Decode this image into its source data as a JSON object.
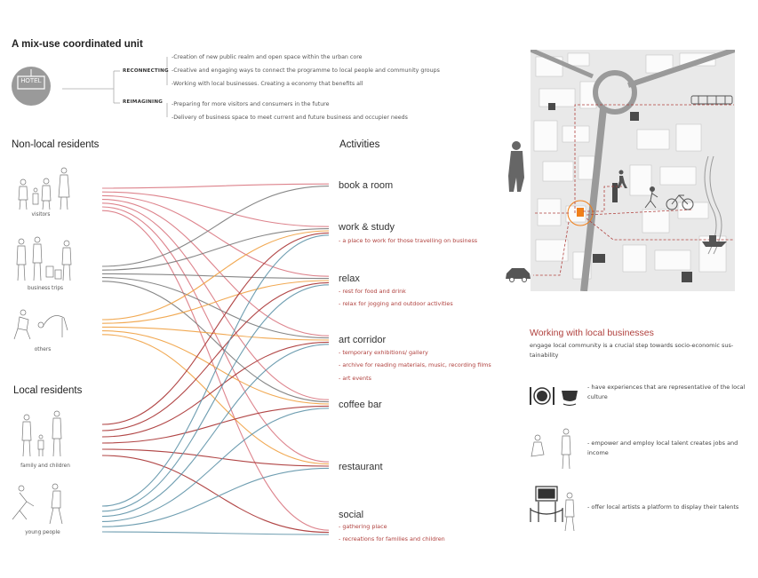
{
  "header": {
    "title": "A mix-use coordinated unit",
    "hotel_label": "HOTEL",
    "strategy_1": "RECONNECTING",
    "strategy_2": "REIMAGINING",
    "points": [
      "-Creation of new public realm and open space within the urban core",
      "-Creative and engaging ways to connect the programme to local people and community groups",
      "-Working with local businesses. Creating a economy that benefits all",
      "-Preparing for more visitors and consumers in the future",
      "-Delivery of business space to meet current and future business and occupier needs"
    ]
  },
  "left": {
    "nonlocal_title": "Non-local residents",
    "local_title": "Local residents",
    "groups": [
      {
        "label": "visitors"
      },
      {
        "label": "business trips"
      },
      {
        "label": "others"
      },
      {
        "label": "family and children"
      },
      {
        "label": "young people"
      }
    ]
  },
  "activities": {
    "title": "Activities",
    "items": [
      {
        "name": "book a room",
        "subs": []
      },
      {
        "name": "work & study",
        "subs": [
          "- a place to work for those travelling on business"
        ]
      },
      {
        "name": "relax",
        "subs": [
          "- rest for food and drink",
          "- relax for jogging and outdoor activities"
        ]
      },
      {
        "name": "art corridor",
        "subs": [
          "- temporary exhibitions/ gallery",
          "- archive for reading materials, music, recording films",
          "- art events"
        ]
      },
      {
        "name": "coffee bar",
        "subs": []
      },
      {
        "name": "restaurant",
        "subs": []
      },
      {
        "name": "social",
        "subs": [
          "- gathering place",
          "- recreations for families and children"
        ]
      }
    ]
  },
  "business": {
    "title": "Working with local businesses",
    "intro_1": "engage local community is a crucial step towards socio-economic sus-",
    "intro_2": "tainability",
    "items": [
      {
        "text_1": "- have experiences that are representative of the local",
        "text_2": "culture"
      },
      {
        "text_1": "- empower and employ local talent creates jobs and",
        "text_2": "income"
      },
      {
        "text_1": "- offer local artists a platform to display their talents",
        "text_2": ""
      }
    ]
  },
  "colors": {
    "visitors": "#d9757f",
    "business": "#7a7a7a",
    "others": "#f0a040",
    "family": "#a83232",
    "young": "#5f93a8",
    "accent": "#b0413e",
    "map_orange": "#f07f1a"
  },
  "flows": {
    "visitors": [
      0,
      1,
      2,
      3,
      4,
      5,
      6
    ],
    "business": [
      0,
      1,
      2,
      3,
      4
    ],
    "others": [
      1,
      2,
      3,
      4,
      5
    ],
    "family": [
      1,
      2,
      3,
      4,
      5,
      6
    ],
    "young": [
      1,
      2,
      3,
      4,
      5,
      6
    ]
  }
}
